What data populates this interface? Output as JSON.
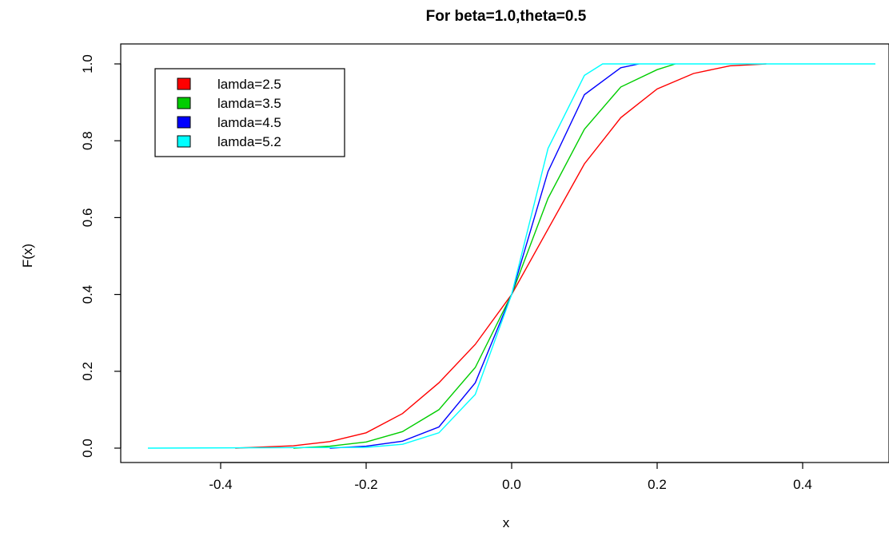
{
  "chart_data": {
    "type": "line",
    "title": "For beta=1.0,theta=0.5",
    "xlabel": "x",
    "ylabel": "F(x)",
    "xlim": [
      -0.5,
      0.5
    ],
    "ylim": [
      0,
      1
    ],
    "x_ticks": [
      -0.4,
      -0.2,
      0.0,
      0.2,
      0.4
    ],
    "x_tick_labels": [
      "-0.4",
      "-0.2",
      "0.0",
      "0.2",
      "0.4"
    ],
    "y_ticks": [
      0.0,
      0.2,
      0.4,
      0.6,
      0.8,
      1.0
    ],
    "y_tick_labels": [
      "0.0",
      "0.2",
      "0.4",
      "0.6",
      "0.8",
      "1.0"
    ],
    "grid": false,
    "legend": {
      "position": "top-left",
      "bordered": true
    },
    "series": [
      {
        "name": "lamda=2.5",
        "color": "#ff0000",
        "points": [
          [
            -0.38,
            0.0
          ],
          [
            -0.3,
            0.006
          ],
          [
            -0.25,
            0.017
          ],
          [
            -0.2,
            0.04
          ],
          [
            -0.15,
            0.09
          ],
          [
            -0.1,
            0.17
          ],
          [
            -0.05,
            0.27
          ],
          [
            0.0,
            0.4
          ],
          [
            0.05,
            0.57
          ],
          [
            0.1,
            0.74
          ],
          [
            0.15,
            0.86
          ],
          [
            0.2,
            0.935
          ],
          [
            0.25,
            0.975
          ],
          [
            0.3,
            0.995
          ],
          [
            0.35,
            1.0
          ]
        ]
      },
      {
        "name": "lamda=3.5",
        "color": "#00cd00",
        "points": [
          [
            -0.3,
            0.0
          ],
          [
            -0.25,
            0.005
          ],
          [
            -0.2,
            0.016
          ],
          [
            -0.15,
            0.043
          ],
          [
            -0.1,
            0.1
          ],
          [
            -0.05,
            0.21
          ],
          [
            0.0,
            0.4
          ],
          [
            0.05,
            0.65
          ],
          [
            0.1,
            0.83
          ],
          [
            0.15,
            0.94
          ],
          [
            0.2,
            0.985
          ],
          [
            0.225,
            1.0
          ]
        ]
      },
      {
        "name": "lamda=4.5",
        "color": "#0000ff",
        "points": [
          [
            -0.25,
            0.0
          ],
          [
            -0.2,
            0.005
          ],
          [
            -0.15,
            0.018
          ],
          [
            -0.1,
            0.055
          ],
          [
            -0.05,
            0.17
          ],
          [
            0.0,
            0.4
          ],
          [
            0.05,
            0.72
          ],
          [
            0.1,
            0.92
          ],
          [
            0.15,
            0.99
          ],
          [
            0.175,
            1.0
          ]
        ]
      },
      {
        "name": "lamda=5.2",
        "color": "#00ffff",
        "points": [
          [
            -0.5,
            0.0
          ],
          [
            -0.2,
            0.002
          ],
          [
            -0.15,
            0.01
          ],
          [
            -0.1,
            0.04
          ],
          [
            -0.05,
            0.14
          ],
          [
            0.0,
            0.4
          ],
          [
            0.05,
            0.78
          ],
          [
            0.1,
            0.97
          ],
          [
            0.125,
            1.0
          ],
          [
            0.5,
            1.0
          ]
        ]
      }
    ]
  }
}
